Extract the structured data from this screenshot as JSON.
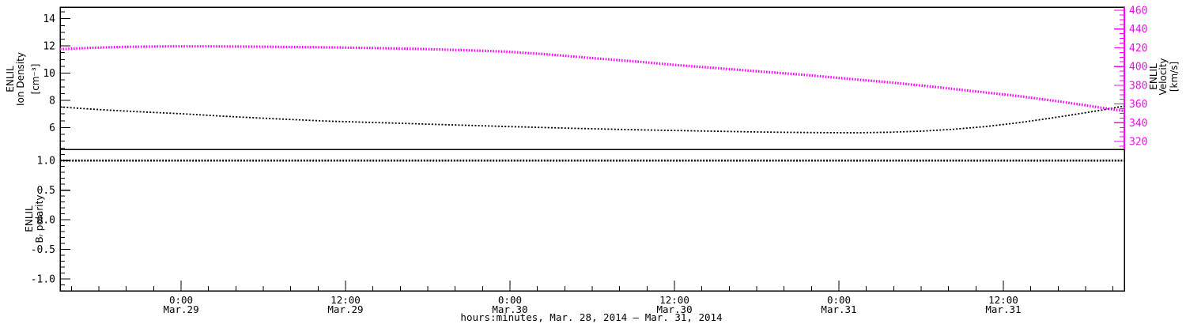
{
  "figure": {
    "background": "#ffffff",
    "frame_color": "#000000",
    "accent_magenta": "#ff00ff",
    "model_name": "ENLIL"
  },
  "labels": {
    "density_title": [
      "ENLIL",
      "Ion Density",
      "[cm⁻³]"
    ],
    "velocity_title": [
      "ENLIL",
      "Velocity",
      "[km/s]"
    ],
    "polarity_title": [
      "ENLIL",
      "Bᵣ polarity"
    ]
  },
  "chart_data": [
    {
      "type": "line",
      "panel": "top",
      "title": "",
      "xlabel": "hours:minutes, Mar. 28, 2014 – Mar. 31, 2014",
      "ylabel_left": "ENLIL Ion Density [cm⁻³]",
      "ylabel_right": "ENLIL Velocity [km/s]",
      "y_left_range": [
        4.4,
        14.85
      ],
      "y_left_ticks": [
        6,
        8,
        10,
        12,
        14
      ],
      "y_left_minor_step": 0.5,
      "y_right_range": [
        311.6,
        463.4
      ],
      "y_right_ticks": [
        320,
        340,
        360,
        380,
        400,
        420,
        440,
        460
      ],
      "y_right_minor_step": 5,
      "x_major_ticks": [
        {
          "frac": 0.1137,
          "time": "0:00",
          "date": "Mar.29"
        },
        {
          "frac": 0.2682,
          "time": "12:00",
          "date": "Mar.29"
        },
        {
          "frac": 0.4227,
          "time": "0:00",
          "date": "Mar.30"
        },
        {
          "frac": 0.5773,
          "time": "12:00",
          "date": "Mar.30"
        },
        {
          "frac": 0.7318,
          "time": "0:00",
          "date": "Mar.31"
        },
        {
          "frac": 0.8863,
          "time": "12:00",
          "date": "Mar.31"
        }
      ],
      "x_minor_start_frac": 0.0107,
      "x_minor_step_frac": 0.025753,
      "grid": false,
      "legend": "none",
      "series": [
        {
          "name": "ion_density",
          "axis": "left",
          "units": "cm⁻³",
          "color": "#000000",
          "line_style": "dotted",
          "points": [
            [
              0.0,
              7.52
            ],
            [
              0.025,
              7.38
            ],
            [
              0.05,
              7.26
            ],
            [
              0.08,
              7.14
            ],
            [
              0.114,
              7.02
            ],
            [
              0.15,
              6.85
            ],
            [
              0.2,
              6.65
            ],
            [
              0.25,
              6.48
            ],
            [
              0.3,
              6.36
            ],
            [
              0.36,
              6.22
            ],
            [
              0.42,
              6.08
            ],
            [
              0.48,
              5.95
            ],
            [
              0.54,
              5.84
            ],
            [
              0.6,
              5.75
            ],
            [
              0.66,
              5.67
            ],
            [
              0.71,
              5.63
            ],
            [
              0.75,
              5.62
            ],
            [
              0.78,
              5.66
            ],
            [
              0.81,
              5.74
            ],
            [
              0.84,
              5.88
            ],
            [
              0.87,
              6.08
            ],
            [
              0.9,
              6.35
            ],
            [
              0.93,
              6.68
            ],
            [
              0.96,
              7.05
            ],
            [
              0.98,
              7.3
            ],
            [
              1.0,
              7.58
            ]
          ]
        },
        {
          "name": "velocity",
          "axis": "right",
          "units": "km/s",
          "color": "#ff00ff",
          "line_style": "dotted",
          "points": [
            [
              0.0,
              418.5
            ],
            [
              0.03,
              420.0
            ],
            [
              0.06,
              421.0
            ],
            [
              0.1,
              421.5
            ],
            [
              0.14,
              421.5
            ],
            [
              0.18,
              421.2
            ],
            [
              0.22,
              420.8
            ],
            [
              0.26,
              420.3
            ],
            [
              0.3,
              419.6
            ],
            [
              0.34,
              418.7
            ],
            [
              0.38,
              417.4
            ],
            [
              0.42,
              415.8
            ],
            [
              0.46,
              412.8
            ],
            [
              0.5,
              409.0
            ],
            [
              0.54,
              405.5
            ],
            [
              0.58,
              401.5
            ],
            [
              0.62,
              398.0
            ],
            [
              0.66,
              394.5
            ],
            [
              0.7,
              391.0
            ],
            [
              0.74,
              387.0
            ],
            [
              0.78,
              383.0
            ],
            [
              0.82,
              378.5
            ],
            [
              0.86,
              373.5
            ],
            [
              0.9,
              368.5
            ],
            [
              0.94,
              362.5
            ],
            [
              0.97,
              357.5
            ],
            [
              1.0,
              352.5
            ]
          ]
        }
      ]
    },
    {
      "type": "line",
      "panel": "bottom",
      "title": "",
      "ylabel_left": "ENLIL Bᵣ polarity",
      "y_left_range": [
        -1.2,
        1.19
      ],
      "y_left_ticks": [
        1.0,
        0.5,
        0.0,
        -0.5,
        -1.0
      ],
      "y_left_minor_step": 0.1,
      "grid": false,
      "legend": "none",
      "series": [
        {
          "name": "br_polarity",
          "axis": "left",
          "units": "",
          "color": "#000000",
          "line_style": "dotted",
          "points": [
            [
              0.0,
              1.0
            ],
            [
              1.0,
              1.0
            ]
          ]
        }
      ]
    }
  ]
}
